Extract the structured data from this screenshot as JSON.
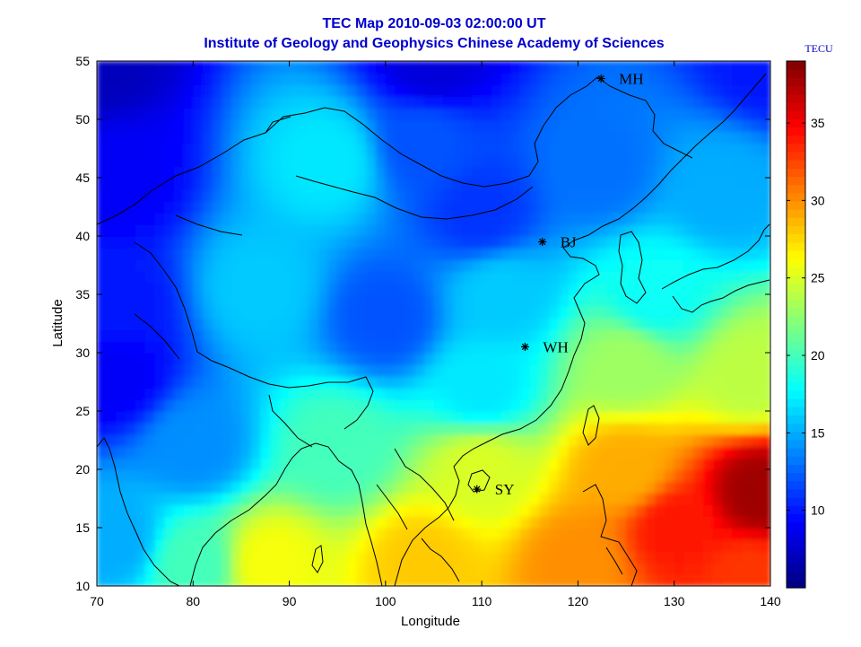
{
  "chart_data": {
    "type": "heatmap",
    "title": "TEC Map 2010-09-03 02:00:00 UT",
    "subtitle": "Institute of Geology and Geophysics Chinese Academy of Sciences",
    "xlabel": "Longitude",
    "ylabel": "Latitude",
    "xlim": [
      70,
      140
    ],
    "ylim": [
      10,
      55
    ],
    "xticks": [
      70,
      80,
      90,
      100,
      110,
      120,
      130,
      140
    ],
    "yticks": [
      10,
      15,
      20,
      25,
      30,
      35,
      40,
      45,
      50,
      55
    ],
    "colorbar": {
      "unit": "TECU",
      "range": [
        5,
        39
      ],
      "ticks": [
        10,
        15,
        20,
        25,
        30,
        35
      ],
      "colormap": "jet"
    },
    "stations": [
      {
        "name": "MH",
        "lon": 122.4,
        "lat": 53.5
      },
      {
        "name": "BJ",
        "lon": 116.3,
        "lat": 39.5
      },
      {
        "name": "WH",
        "lon": 114.5,
        "lat": 30.5
      },
      {
        "name": "SY",
        "lon": 109.5,
        "lat": 18.3
      }
    ],
    "field_anchors": [
      {
        "lon": 70,
        "lat": 55,
        "tec": 7
      },
      {
        "lon": 105,
        "lat": 55,
        "tec": 8
      },
      {
        "lon": 140,
        "lat": 55,
        "tec": 10
      },
      {
        "lon": 72,
        "lat": 45,
        "tec": 9
      },
      {
        "lon": 94,
        "lat": 46.5,
        "tec": 17
      },
      {
        "lon": 110,
        "lat": 42,
        "tec": 11
      },
      {
        "lon": 104,
        "lat": 48,
        "tec": 12
      },
      {
        "lon": 122,
        "lat": 46,
        "tec": 13
      },
      {
        "lon": 135,
        "lat": 44,
        "tec": 15
      },
      {
        "lon": 87,
        "lat": 35.5,
        "tec": 16
      },
      {
        "lon": 72,
        "lat": 34,
        "tec": 10
      },
      {
        "lon": 72,
        "lat": 28,
        "tec": 9
      },
      {
        "lon": 100,
        "lat": 33,
        "tec": 12
      },
      {
        "lon": 112,
        "lat": 35,
        "tec": 16
      },
      {
        "lon": 128,
        "lat": 35,
        "tec": 18
      },
      {
        "lon": 110,
        "lat": 27,
        "tec": 17
      },
      {
        "lon": 125,
        "lat": 29,
        "tec": 23
      },
      {
        "lon": 138,
        "lat": 28,
        "tec": 24
      },
      {
        "lon": 80,
        "lat": 22,
        "tec": 14
      },
      {
        "lon": 95,
        "lat": 22,
        "tec": 20
      },
      {
        "lon": 110,
        "lat": 20,
        "tec": 25
      },
      {
        "lon": 125,
        "lat": 20,
        "tec": 29
      },
      {
        "lon": 139,
        "lat": 18,
        "tec": 38
      },
      {
        "lon": 130,
        "lat": 15,
        "tec": 34
      },
      {
        "lon": 88,
        "lat": 12,
        "tec": 26
      },
      {
        "lon": 80,
        "lat": 12,
        "tec": 20
      },
      {
        "lon": 72,
        "lat": 14,
        "tec": 15
      },
      {
        "lon": 104,
        "lat": 12,
        "tec": 28
      },
      {
        "lon": 120,
        "lat": 12,
        "tec": 30
      },
      {
        "lon": 138,
        "lat": 11,
        "tec": 33
      }
    ]
  }
}
